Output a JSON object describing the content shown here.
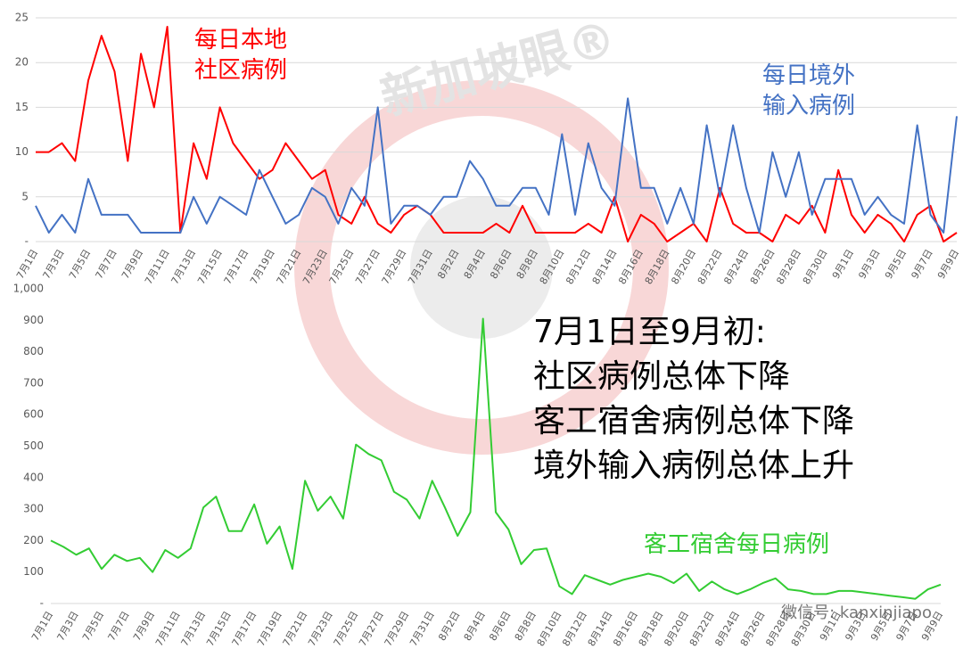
{
  "chart_data": [
    {
      "type": "line",
      "categories": [
        "7月1日",
        null,
        "7月3日",
        null,
        "7月5日",
        null,
        "7月7日",
        null,
        "7月9日",
        null,
        "7月11日",
        null,
        "7月13日",
        null,
        "7月15日",
        null,
        "7月17日",
        null,
        "7月19日",
        null,
        "7月21日",
        null,
        "7月23日",
        null,
        "7月25日",
        null,
        "7月27日",
        null,
        "7月29日",
        null,
        "7月31日",
        null,
        "8月2日",
        null,
        "8月4日",
        null,
        "8月6日",
        null,
        "8月8日",
        null,
        "8月10日",
        null,
        "8月12日",
        null,
        "8月14日",
        null,
        "8月16日",
        null,
        "8月18日",
        null,
        "8月20日",
        null,
        "8月22日",
        null,
        "8月24日",
        null,
        "8月26日",
        null,
        "8月28日",
        null,
        "8月30日",
        null,
        "9月1日",
        null,
        "9月3日",
        null,
        "9月5日",
        null,
        "9月7日",
        null,
        "9月9日"
      ],
      "series": [
        {
          "name": "每日本地社区病例",
          "color": "#ff0000",
          "values": [
            10,
            10,
            11,
            9,
            18,
            23,
            19,
            9,
            21,
            15,
            24,
            1,
            11,
            7,
            15,
            11,
            9,
            7,
            8,
            11,
            9,
            7,
            8,
            3,
            2,
            5,
            2,
            1,
            3,
            4,
            3,
            1,
            1,
            1,
            1,
            2,
            1,
            4,
            1,
            1,
            1,
            1,
            2,
            1,
            5,
            0,
            3,
            2,
            0,
            1,
            2,
            0,
            6,
            2,
            1,
            1,
            0,
            3,
            2,
            4,
            1,
            8,
            3,
            1,
            3,
            2,
            0,
            3,
            4,
            0,
            1
          ]
        },
        {
          "name": "每日境外输入病例",
          "color": "#4472c4",
          "values": [
            4,
            1,
            3,
            1,
            7,
            3,
            3,
            3,
            1,
            1,
            1,
            1,
            5,
            2,
            5,
            4,
            3,
            8,
            5,
            2,
            3,
            6,
            5,
            2,
            6,
            4,
            15,
            2,
            4,
            4,
            3,
            5,
            5,
            9,
            7,
            4,
            4,
            6,
            6,
            3,
            12,
            3,
            11,
            6,
            4,
            16,
            6,
            6,
            2,
            6,
            2,
            13,
            5,
            13,
            6,
            1,
            10,
            5,
            10,
            3,
            7,
            7,
            7,
            3,
            5,
            3,
            2,
            13,
            3,
            1,
            14
          ]
        }
      ],
      "ylim": [
        0,
        25
      ],
      "yticks": [
        {
          "value": 0,
          "label": "-"
        },
        5,
        10,
        15,
        20,
        25
      ],
      "grid": true
    },
    {
      "type": "line",
      "categories": [
        "7月1日",
        null,
        "7月3日",
        null,
        "7月5日",
        null,
        "7月7日",
        null,
        "7月9日",
        null,
        "7月11日",
        null,
        "7月13日",
        null,
        "7月15日",
        null,
        "7月17日",
        null,
        "7月19日",
        null,
        "7月21日",
        null,
        "7月23日",
        null,
        "7月25日",
        null,
        "7月27日",
        null,
        "7月29日",
        null,
        "7月31日",
        null,
        "8月2日",
        null,
        "8月4日",
        null,
        "8月6日",
        null,
        "8月8日",
        null,
        "8月10日",
        null,
        "8月12日",
        null,
        "8月14日",
        null,
        "8月16日",
        null,
        "8月18日",
        null,
        "8月20日",
        null,
        "8月22日",
        null,
        "8月24日",
        null,
        "8月26日",
        null,
        "8月28日",
        null,
        "8月30日",
        null,
        "9月1日",
        null,
        "9月3日",
        null,
        "9月5日",
        null,
        "9月7日",
        null,
        "9月9日"
      ],
      "series": [
        {
          "name": "客工宿舍每日病例",
          "color": "#33cc33",
          "values": [
            200,
            180,
            155,
            175,
            110,
            155,
            135,
            145,
            100,
            170,
            145,
            175,
            305,
            340,
            230,
            230,
            315,
            190,
            245,
            110,
            390,
            295,
            340,
            270,
            505,
            475,
            455,
            355,
            330,
            270,
            390,
            305,
            215,
            290,
            905,
            290,
            235,
            125,
            170,
            175,
            55,
            30,
            90,
            75,
            60,
            75,
            85,
            95,
            85,
            65,
            95,
            40,
            70,
            45,
            30,
            45,
            65,
            80,
            45,
            40,
            30,
            30,
            40,
            40,
            35,
            30,
            25,
            20,
            15,
            45,
            60
          ]
        }
      ],
      "ylim": [
        0,
        1000
      ],
      "yticks": [
        {
          "value": 0,
          "label": "-"
        },
        100,
        200,
        300,
        400,
        500,
        600,
        700,
        800,
        900,
        {
          "value": 1000,
          "label": "1,000"
        }
      ],
      "grid": false,
      "annotations": [
        "7月1日至9月初:",
        "社区病例总体下降",
        "客工宿舍病例总体下降",
        "境外输入病例总体上升"
      ]
    }
  ],
  "watermark": "新加坡眼®",
  "wechat": "微信号: kanxinjiapo"
}
